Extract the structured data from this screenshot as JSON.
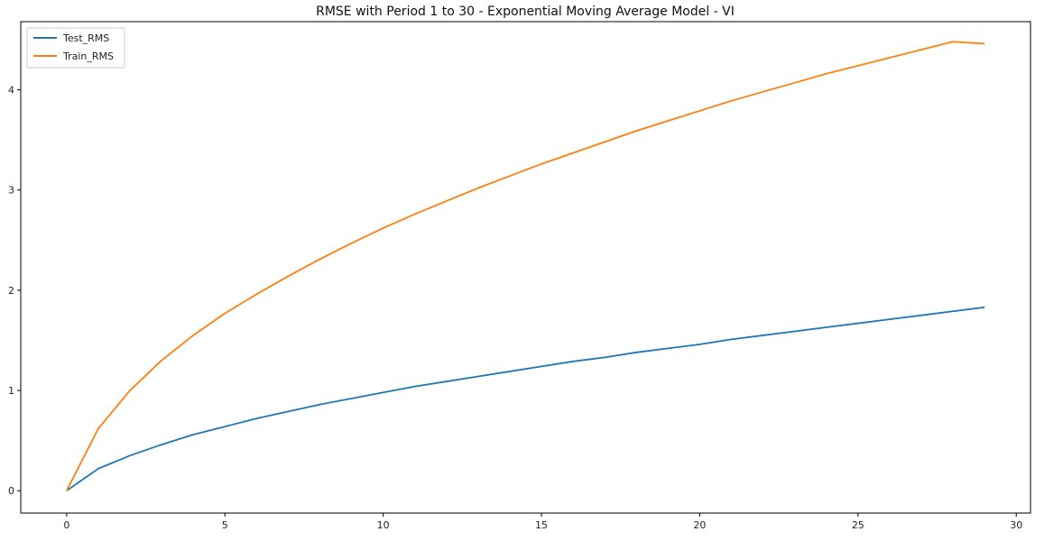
{
  "chart_data": {
    "type": "line",
    "title": "RMSE with Period 1 to 30 - Exponential Moving Average Model - VI",
    "xlabel": "",
    "ylabel": "",
    "xlim": [
      -1.45,
      30.45
    ],
    "ylim": [
      -0.223,
      4.68
    ],
    "x_ticks": [
      0,
      5,
      10,
      15,
      20,
      25,
      30
    ],
    "y_ticks": [
      0,
      1,
      2,
      3,
      4
    ],
    "legend_position": "upper-left",
    "grid": false,
    "x": [
      0,
      1,
      2,
      3,
      4,
      5,
      6,
      7,
      8,
      9,
      10,
      11,
      12,
      13,
      14,
      15,
      16,
      17,
      18,
      19,
      20,
      21,
      22,
      23,
      24,
      25,
      26,
      27,
      28,
      29
    ],
    "series": [
      {
        "name": "Test_RMS",
        "color": "#1f77b4",
        "values": [
          0.0,
          0.22,
          0.35,
          0.46,
          0.56,
          0.64,
          0.72,
          0.79,
          0.86,
          0.92,
          0.98,
          1.04,
          1.09,
          1.14,
          1.19,
          1.24,
          1.29,
          1.33,
          1.38,
          1.42,
          1.46,
          1.51,
          1.55,
          1.59,
          1.63,
          1.67,
          1.71,
          1.75,
          1.79,
          1.83
        ]
      },
      {
        "name": "Train_RMS",
        "color": "#ff7f0e",
        "values": [
          0.0,
          0.62,
          1.0,
          1.3,
          1.55,
          1.77,
          1.96,
          2.14,
          2.31,
          2.47,
          2.62,
          2.76,
          2.89,
          3.02,
          3.14,
          3.26,
          3.37,
          3.48,
          3.59,
          3.69,
          3.79,
          3.89,
          3.98,
          4.07,
          4.16,
          4.24,
          4.32,
          4.4,
          4.48,
          4.46
        ]
      }
    ]
  }
}
